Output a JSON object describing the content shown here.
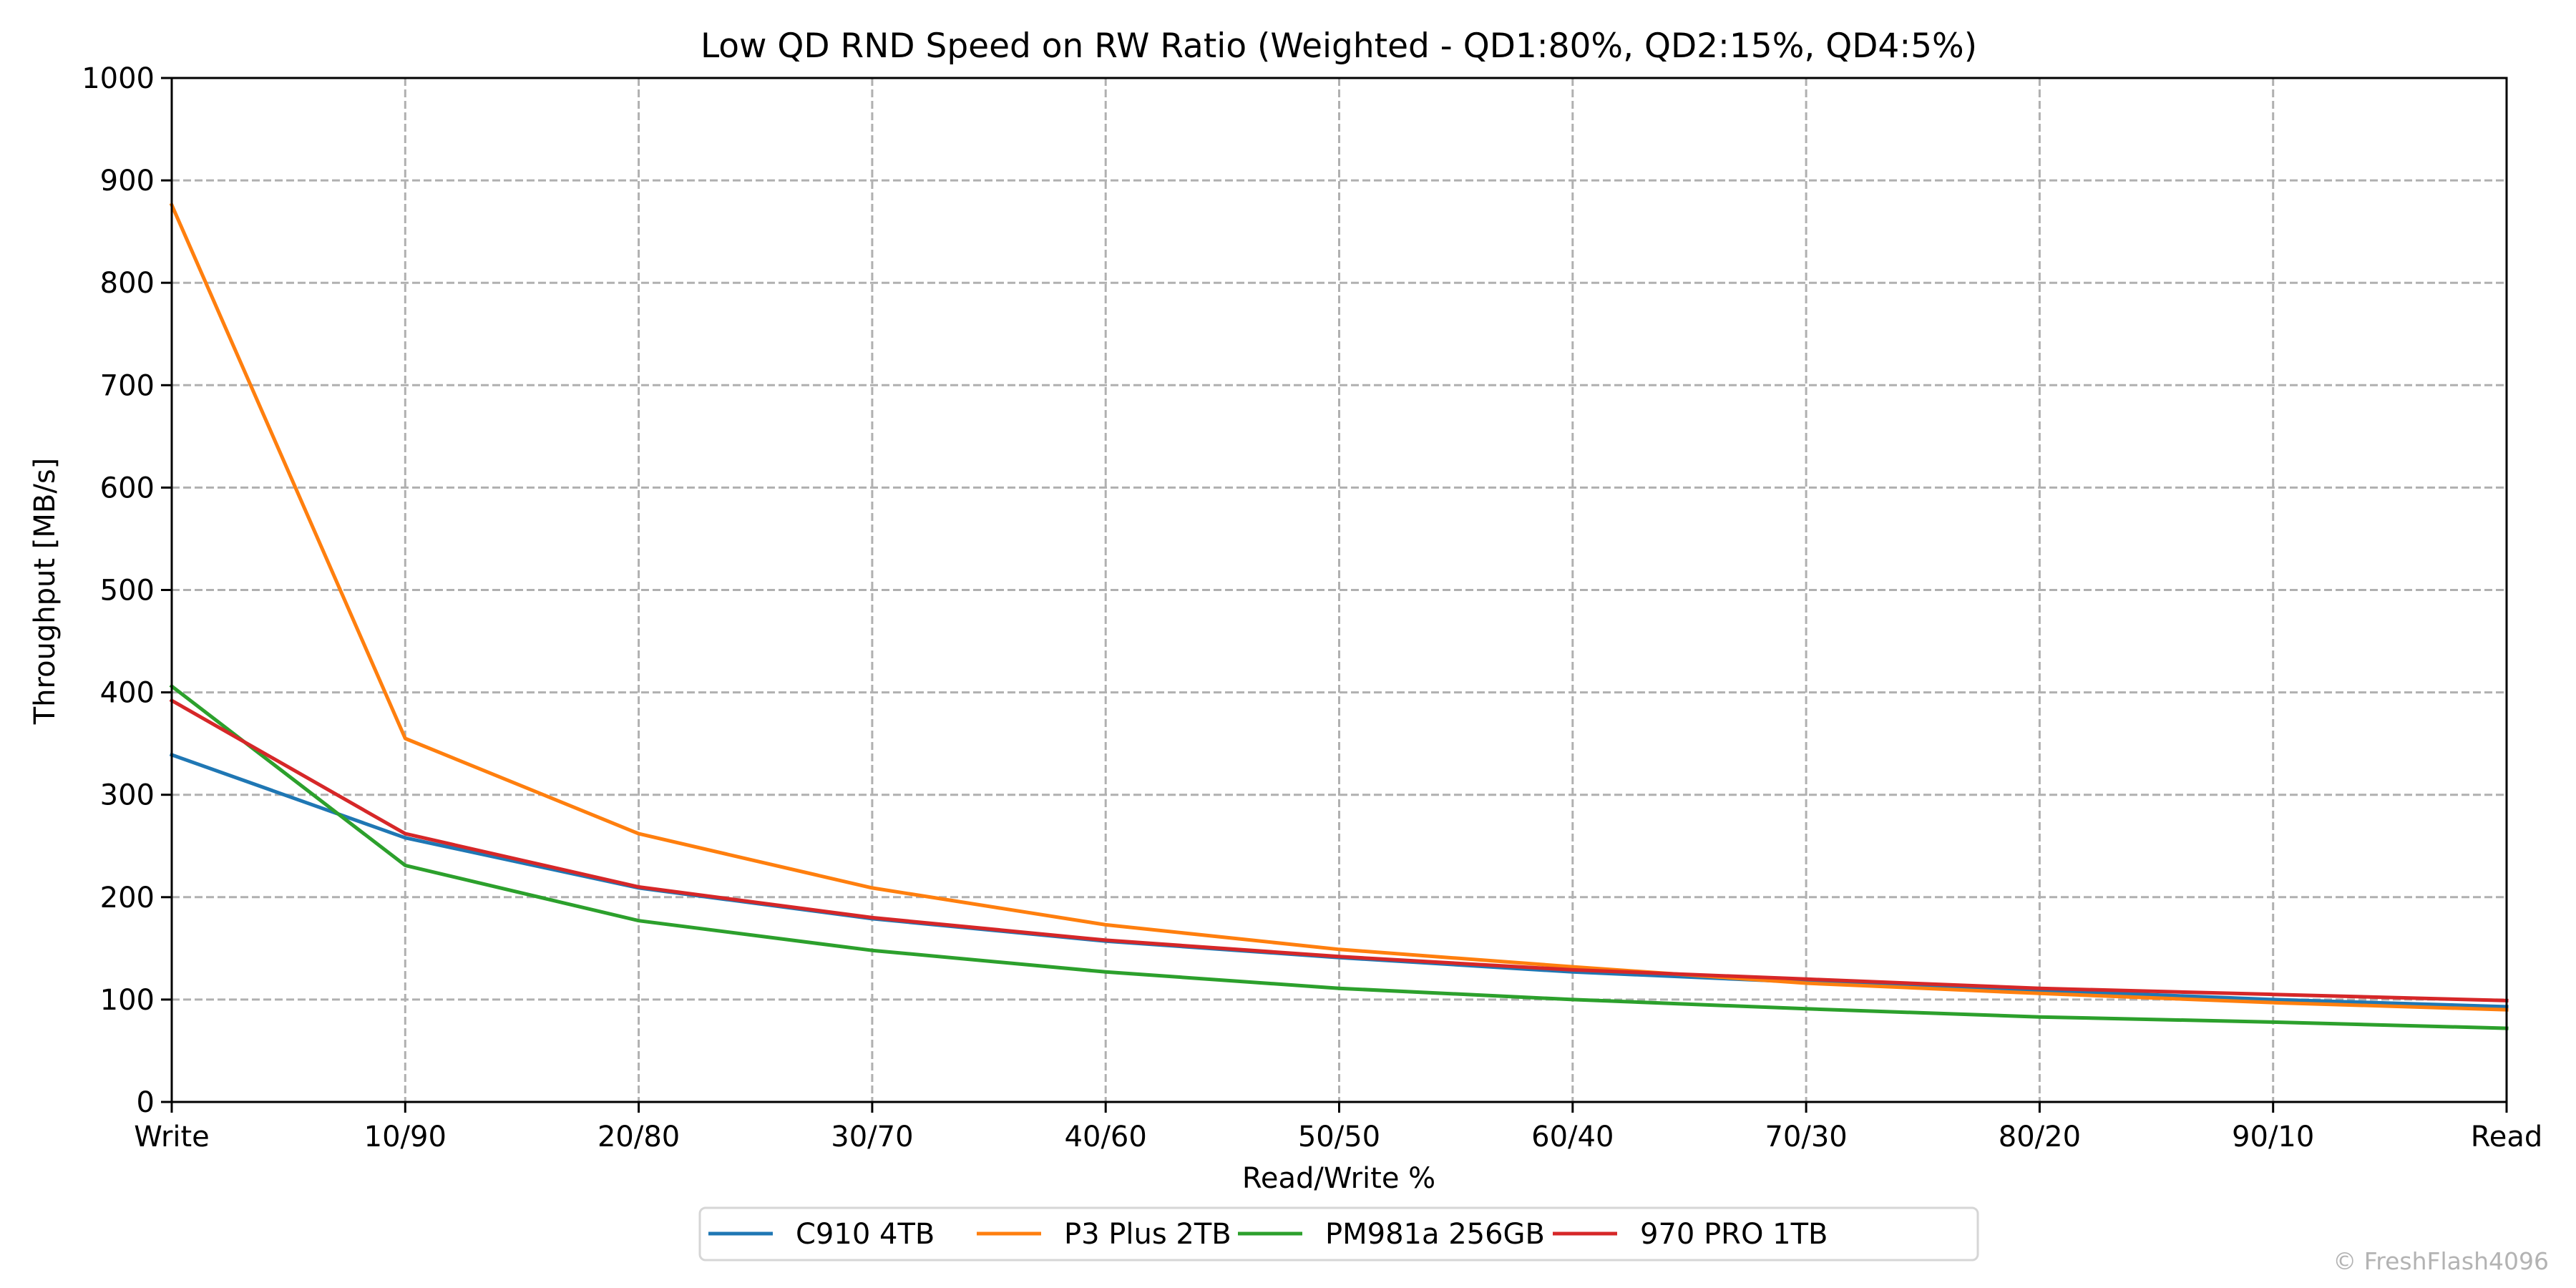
{
  "chart_data": {
    "type": "line",
    "title": "Low QD RND Speed on RW Ratio (Weighted - QD1:80%, QD2:15%, QD4:5%)",
    "xlabel": "Read/Write %",
    "ylabel": "Throughput [MB/s]",
    "categories": [
      "Write",
      "10/90",
      "20/80",
      "30/70",
      "40/60",
      "50/50",
      "60/40",
      "70/30",
      "80/20",
      "90/10",
      "Read"
    ],
    "ylim": [
      0,
      1000
    ],
    "yticks": [
      0,
      100,
      200,
      300,
      400,
      500,
      600,
      700,
      800,
      900,
      1000
    ],
    "grid": true,
    "legend_position": "bottom-center",
    "series": [
      {
        "name": "C910 4TB",
        "color": "#1f77b4",
        "values": [
          339,
          258,
          209,
          179,
          157,
          141,
          127,
          117,
          109,
          100,
          93
        ]
      },
      {
        "name": "P3 Plus 2TB",
        "color": "#ff7f0e",
        "values": [
          876,
          355,
          262,
          209,
          173,
          149,
          132,
          116,
          106,
          97,
          90
        ]
      },
      {
        "name": "PM981a 256GB",
        "color": "#2ca02c",
        "values": [
          406,
          231,
          177,
          148,
          127,
          111,
          100,
          91,
          83,
          78,
          72
        ]
      },
      {
        "name": "970 PRO 1TB",
        "color": "#d62728",
        "values": [
          392,
          262,
          210,
          180,
          158,
          142,
          129,
          120,
          111,
          105,
          99
        ]
      }
    ],
    "watermark": "© FreshFlash4096"
  }
}
